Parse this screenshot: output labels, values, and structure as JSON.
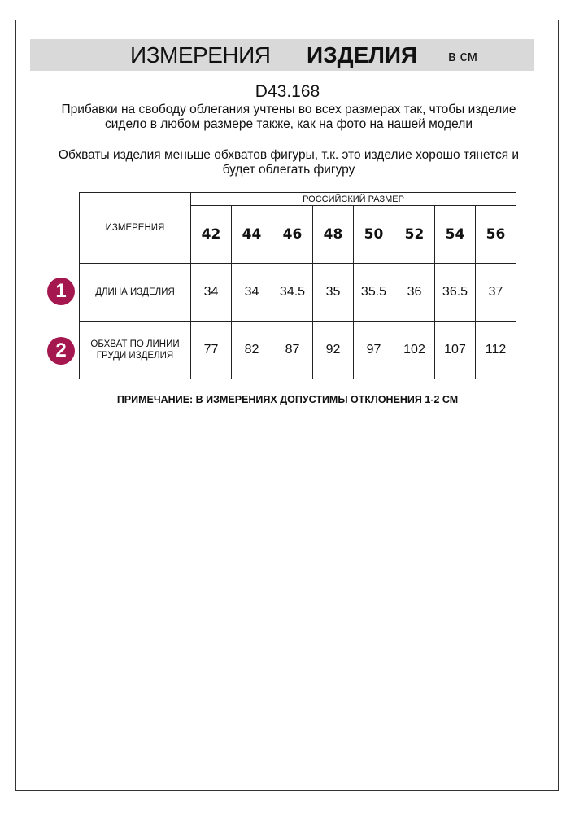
{
  "header": {
    "title_regular": "ИЗМЕРЕНИЯ",
    "title_bold": "ИЗДЕЛИЯ",
    "unit": "в см"
  },
  "article": "D43.168",
  "paragraphs": [
    "Прибавки на свободу облегания учтены во всех размерах так, чтобы изделие сидело в любом размере также, как на фото на нашей модели",
    "Обхваты изделия меньше обхватов фигуры, т.к. это изделие хорошо тянется и будет облегать фигуру"
  ],
  "table": {
    "corner": "ИЗМЕРЕНИЯ",
    "group_header": "РОССИЙСКИЙ РАЗМЕР",
    "sizes": [
      "42",
      "44",
      "46",
      "48",
      "50",
      "52",
      "54",
      "56"
    ],
    "rows": [
      {
        "badge": "1",
        "label": "ДЛИНА ИЗДЕЛИЯ",
        "values": [
          "34",
          "34",
          "34.5",
          "35",
          "35.5",
          "36",
          "36.5",
          "37"
        ]
      },
      {
        "badge": "2",
        "label": "ОБХВАТ ПО ЛИНИИ ГРУДИ ИЗДЕЛИЯ",
        "values": [
          "77",
          "82",
          "87",
          "92",
          "97",
          "102",
          "107",
          "112"
        ]
      }
    ]
  },
  "note": "ПРИМЕЧАНИЕ: В ИЗМЕРЕНИЯХ ДОПУСТИМЫ ОТКЛОНЕНИЯ 1-2 СМ",
  "colors": {
    "badge": "#a5174f",
    "band": "#d9d9d9"
  }
}
